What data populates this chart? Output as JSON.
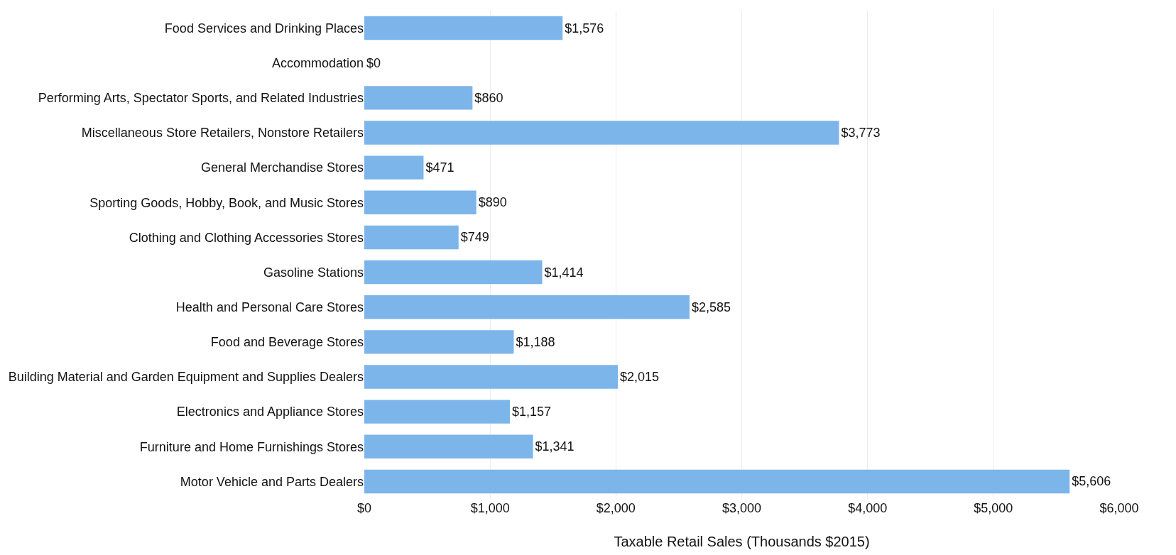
{
  "chart_data": {
    "type": "bar",
    "orientation": "horizontal",
    "xlabel": "Taxable Retail Sales (Thousands $2015)",
    "categories": [
      "Food Services and Drinking Places",
      "Accommodation",
      "Performing Arts, Spectator Sports, and Related Industries",
      "Miscellaneous Store Retailers, Nonstore Retailers",
      "General Merchandise Stores",
      "Sporting Goods, Hobby, Book, and Music Stores",
      "Clothing and Clothing Accessories Stores",
      "Gasoline Stations",
      "Health and Personal Care Stores",
      "Food and Beverage Stores",
      "Building Material and Garden Equipment and Supplies Dealers",
      "Electronics and Appliance Stores",
      "Furniture and Home Furnishings Stores",
      "Motor Vehicle and Parts Dealers"
    ],
    "values": [
      1576,
      0,
      860,
      3773,
      471,
      890,
      749,
      1414,
      2585,
      1188,
      2015,
      1157,
      1341,
      5606
    ],
    "value_labels": [
      "$1,576",
      "$0",
      "$860",
      "$3,773",
      "$471",
      "$890",
      "$749",
      "$1,414",
      "$2,585",
      "$1,188",
      "$2,015",
      "$1,157",
      "$1,341",
      "$5,606"
    ],
    "color": "#7cb5ea",
    "xlim": [
      0,
      6000
    ],
    "xticks": [
      {
        "value": 0,
        "label": "$0"
      },
      {
        "value": 1000,
        "label": "$1,000"
      },
      {
        "value": 2000,
        "label": "$2,000"
      },
      {
        "value": 3000,
        "label": "$3,000"
      },
      {
        "value": 4000,
        "label": "$4,000"
      },
      {
        "value": 5000,
        "label": "$5,000"
      },
      {
        "value": 6000,
        "label": "$6,000"
      }
    ],
    "grid": "x",
    "legend": false
  }
}
